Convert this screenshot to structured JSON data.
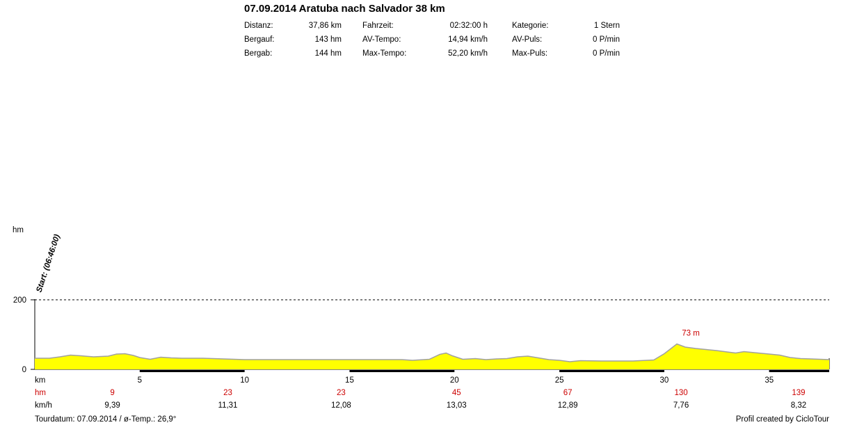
{
  "header": {
    "title": "07.09.2014 Aratuba nach Salvador 38 km",
    "stats": [
      {
        "label": "Distanz:",
        "value": "37,86 km"
      },
      {
        "label": "Bergauf:",
        "value": "143 hm"
      },
      {
        "label": "Bergab:",
        "value": "144 hm"
      },
      {
        "label": "Fahrzeit:",
        "value": "02:32:00 h"
      },
      {
        "label": "AV-Tempo:",
        "value": "14,94 km/h"
      },
      {
        "label": "Max-Tempo:",
        "value": "52,20 km/h"
      },
      {
        "label": "Kategorie:",
        "value": "1 Stern"
      },
      {
        "label": "AV-Puls:",
        "value": "0 P/min"
      },
      {
        "label": "Max-Puls:",
        "value": "0 P/min"
      }
    ]
  },
  "chart_data": {
    "type": "area",
    "ylabel": "hm",
    "xlabel": "km",
    "xlim": [
      0,
      37.86
    ],
    "ylim": [
      0,
      200
    ],
    "y_ticks": [
      "0",
      "200"
    ],
    "x_ticks": [
      5,
      10,
      15,
      20,
      25,
      30,
      35
    ],
    "grid_line": {
      "value": 200,
      "style": "dashed"
    },
    "start_label": "Start: (06:46:00)",
    "max_label": {
      "x": 30.6,
      "y": 73,
      "text": "73 m"
    },
    "fill_color": "#ffff00",
    "line_color": "#a0a0a0",
    "profile": [
      [
        0,
        32
      ],
      [
        0.7,
        32
      ],
      [
        1.2,
        36
      ],
      [
        1.7,
        41
      ],
      [
        2.2,
        39
      ],
      [
        2.8,
        36
      ],
      [
        3.5,
        38
      ],
      [
        3.9,
        44
      ],
      [
        4.3,
        45
      ],
      [
        4.7,
        40
      ],
      [
        5.0,
        34
      ],
      [
        5.5,
        29
      ],
      [
        6.0,
        35
      ],
      [
        6.5,
        33
      ],
      [
        7.0,
        32
      ],
      [
        8.0,
        32
      ],
      [
        9.0,
        30
      ],
      [
        10.0,
        28
      ],
      [
        12.0,
        28
      ],
      [
        14.0,
        28
      ],
      [
        16.0,
        28
      ],
      [
        17.5,
        28
      ],
      [
        18.0,
        26
      ],
      [
        18.8,
        29
      ],
      [
        19.3,
        43
      ],
      [
        19.6,
        47
      ],
      [
        19.9,
        39
      ],
      [
        20.4,
        29
      ],
      [
        21.0,
        31
      ],
      [
        21.5,
        28
      ],
      [
        22.0,
        30
      ],
      [
        22.5,
        31
      ],
      [
        23.0,
        36
      ],
      [
        23.5,
        38
      ],
      [
        24.0,
        33
      ],
      [
        24.5,
        28
      ],
      [
        25.0,
        26
      ],
      [
        25.5,
        22
      ],
      [
        26.0,
        25
      ],
      [
        27.0,
        24
      ],
      [
        28.5,
        24
      ],
      [
        29.5,
        27
      ],
      [
        30.0,
        45
      ],
      [
        30.6,
        73
      ],
      [
        31.0,
        64
      ],
      [
        31.5,
        60
      ],
      [
        32.0,
        57
      ],
      [
        32.5,
        54
      ],
      [
        33.0,
        50
      ],
      [
        33.4,
        47
      ],
      [
        33.8,
        51
      ],
      [
        34.3,
        48
      ],
      [
        35.0,
        44
      ],
      [
        35.5,
        41
      ],
      [
        36.0,
        34
      ],
      [
        36.5,
        31
      ],
      [
        37.0,
        30
      ],
      [
        37.86,
        28
      ]
    ],
    "rows": [
      {
        "label": "km",
        "items": [
          {
            "x": 5,
            "text": "5"
          },
          {
            "x": 10,
            "text": "10"
          },
          {
            "x": 15,
            "text": "15"
          },
          {
            "x": 20,
            "text": "20"
          },
          {
            "x": 25,
            "text": "25"
          },
          {
            "x": 30,
            "text": "30"
          },
          {
            "x": 35,
            "text": "35"
          }
        ]
      },
      {
        "label": "hm",
        "color": "#cc0000",
        "items": [
          {
            "x": 3.7,
            "text": "9"
          },
          {
            "x": 9.2,
            "text": "23"
          },
          {
            "x": 14.6,
            "text": "23"
          },
          {
            "x": 20.1,
            "text": "45"
          },
          {
            "x": 25.4,
            "text": "67"
          },
          {
            "x": 30.8,
            "text": "130"
          },
          {
            "x": 36.4,
            "text": "139"
          }
        ]
      },
      {
        "label": "km/h",
        "items": [
          {
            "x": 3.7,
            "text": "9,39"
          },
          {
            "x": 9.2,
            "text": "11,31"
          },
          {
            "x": 14.6,
            "text": "12,08"
          },
          {
            "x": 20.1,
            "text": "13,03"
          },
          {
            "x": 25.4,
            "text": "12,89"
          },
          {
            "x": 30.8,
            "text": "7,76"
          },
          {
            "x": 36.4,
            "text": "8,32"
          }
        ]
      }
    ]
  },
  "footer": {
    "left": "Tourdatum: 07.09.2014  /  ø-Temp.: 26,9°",
    "right": "Profil created by CicloTour"
  }
}
